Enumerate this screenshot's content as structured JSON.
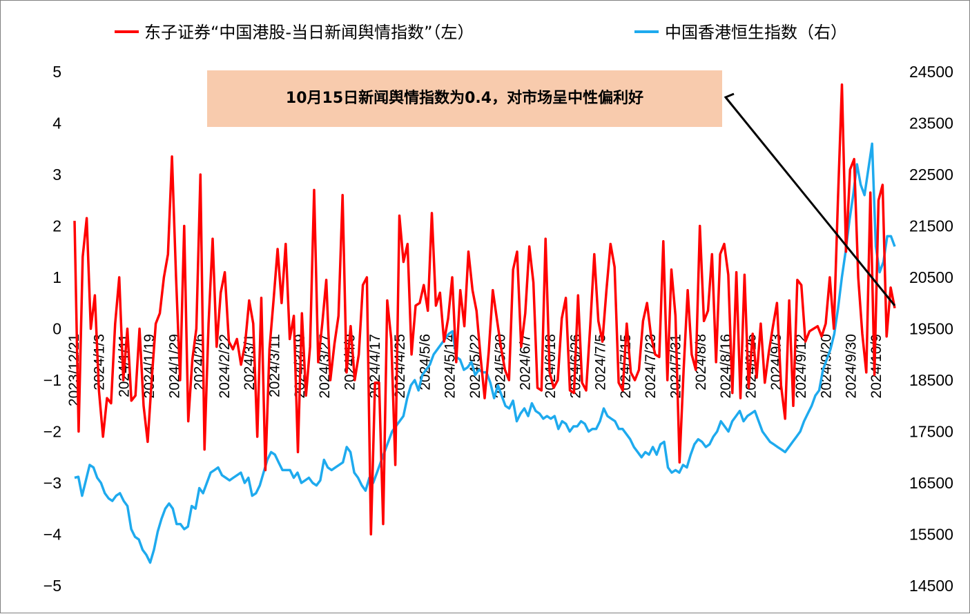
{
  "chart_data": {
    "type": "line",
    "dual_axis": true,
    "title": "",
    "legend": {
      "position": "top",
      "items": [
        {
          "label": "东子证券“中国港股-当日新闻舆情指数”（左）",
          "color": "#ff0000"
        },
        {
          "label": "中国香港恒生指数（右）",
          "color": "#1eaaee"
        }
      ]
    },
    "annotation": {
      "text": "10月15日新闻舆情指数为0.4，对市场呈中性偏利好",
      "box_color": "#f8cbad",
      "arrow_color": "#000000"
    },
    "y_left": {
      "min": -5,
      "max": 5,
      "ticks": [
        "5",
        "4",
        "3",
        "2",
        "1",
        "0",
        "−1",
        "−2",
        "−3",
        "−4",
        "−5"
      ]
    },
    "y_right": {
      "min": 14500,
      "max": 24500,
      "ticks": [
        "24500",
        "23500",
        "22500",
        "21500",
        "20500",
        "19500",
        "18500",
        "17500",
        "16500",
        "15500",
        "14500"
      ]
    },
    "x_tick_labels": [
      "2023/12/21",
      "2024/1/3",
      "2024/1/11",
      "2024/1/19",
      "2024/1/29",
      "2024/2/6",
      "2024/2/22",
      "2024/3/1",
      "2024/3/11",
      "2024/3/19",
      "2024/3/27",
      "2024/4/9",
      "2024/4/17",
      "2024/4/25",
      "2024/5/6",
      "2024/5/14",
      "2024/5/22",
      "2024/5/30",
      "2024/6/7",
      "2024/6/18",
      "2024/6/26",
      "2024/7/5",
      "2024/7/15",
      "2024/7/23",
      "2024/7/31",
      "2024/8/8",
      "2024/8/16",
      "2024/8/26",
      "2024/9/3",
      "2024/9/12",
      "2024/9/20",
      "2024/9/30",
      "2024/10/9"
    ],
    "series": [
      {
        "name": "东子证券“中国港股-当日新闻舆情指数”（左）",
        "axis": "left",
        "color": "#ff0000",
        "values": [
          2.1,
          -2.0,
          1.4,
          2.15,
          0.0,
          0.65,
          -1.2,
          -2.1,
          -1.35,
          -1.45,
          0.1,
          1.0,
          -1.0,
          0.0,
          -1.4,
          -1.3,
          0.0,
          -1.5,
          -2.2,
          -1.0,
          0.1,
          0.3,
          1.0,
          1.45,
          3.35,
          1.0,
          -1.0,
          2.0,
          -1.8,
          -0.6,
          0.0,
          3.0,
          -2.35,
          0.1,
          1.75,
          -0.35,
          0.7,
          1.1,
          -0.25,
          -0.4,
          -0.2,
          -0.7,
          -0.3,
          0.55,
          0.1,
          -2.1,
          0.6,
          -2.75,
          -0.4,
          0.55,
          1.55,
          0.5,
          1.65,
          -0.2,
          0.25,
          -2.4,
          0.3,
          -1.3,
          -0.35,
          2.7,
          -0.65,
          0.1,
          0.95,
          -1.0,
          -0.3,
          0.25,
          2.6,
          -0.85,
          0.05,
          -1.0,
          -0.5,
          0.85,
          1.0,
          -4.0,
          -1.05,
          -1.05,
          -3.8,
          0.55,
          -0.2,
          -2.65,
          2.2,
          1.3,
          1.65,
          -0.5,
          0.45,
          0.5,
          0.85,
          0.35,
          2.25,
          0.45,
          0.7,
          -0.25,
          0.2,
          1.0,
          -0.65,
          0.75,
          0.05,
          1.5,
          0.75,
          0.35,
          -0.55,
          -1.35,
          -0.45,
          0.75,
          0.2,
          -0.35,
          -0.8,
          -1.0,
          1.15,
          1.5,
          -0.35,
          0.3,
          1.6,
          0.9,
          -1.15,
          -1.2,
          1.75,
          -0.85,
          -1.15,
          -1.0,
          0.2,
          0.6,
          -1.2,
          -1.25,
          0.65,
          -1.05,
          -1.2,
          0.05,
          1.45,
          0.15,
          -0.25,
          0.75,
          1.65,
          1.2,
          -1.05,
          -1.2,
          0.1,
          -0.85,
          -1.0,
          -0.8,
          0.15,
          0.5,
          -0.15,
          -0.5,
          -0.55,
          1.7,
          -1.0,
          1.15,
          0.25,
          -2.6,
          -0.8,
          0.75,
          -0.5,
          -0.8,
          2.0,
          0.15,
          0.35,
          1.45,
          -0.65,
          1.45,
          1.65,
          1.05,
          -1.25,
          1.1,
          -1.35,
          1.05,
          -1.15,
          -0.1,
          -0.95,
          0.1,
          -1.05,
          -0.45,
          0.05,
          0.5,
          -1.1,
          -1.75,
          0.55,
          -1.5,
          0.95,
          0.85,
          -0.25,
          -0.05,
          0.0,
          0.05,
          -0.15,
          0.1,
          1.0,
          0.0,
          2.5,
          4.75,
          1.5,
          3.1,
          3.3,
          1.0,
          -0.1,
          -0.85,
          2.65,
          -0.9,
          2.5,
          2.8,
          -0.15,
          0.8,
          0.4
        ]
      },
      {
        "name": "中国香港恒生指数（右）",
        "axis": "right",
        "color": "#1eaaee",
        "values": [
          16600,
          16620,
          16250,
          16550,
          16850,
          16800,
          16600,
          16500,
          16300,
          16200,
          16150,
          16250,
          16300,
          16150,
          16050,
          15600,
          15450,
          15400,
          15200,
          15100,
          14950,
          15200,
          15550,
          15800,
          16000,
          16100,
          16000,
          15700,
          15700,
          15600,
          15650,
          16050,
          16000,
          16400,
          16300,
          16500,
          16700,
          16750,
          16800,
          16650,
          16600,
          16550,
          16600,
          16650,
          16700,
          16500,
          16600,
          16250,
          16300,
          16450,
          16700,
          16950,
          17100,
          17050,
          16900,
          16750,
          16750,
          16750,
          16600,
          16700,
          16500,
          16550,
          16600,
          16500,
          16450,
          16550,
          16950,
          16800,
          16750,
          16800,
          16850,
          16900,
          17200,
          17100,
          16700,
          16600,
          16450,
          16350,
          16600,
          16500,
          16700,
          16900,
          17100,
          17300,
          17500,
          17600,
          17700,
          17800,
          18150,
          18400,
          18500,
          18300,
          18600,
          18700,
          18800,
          19000,
          19100,
          19200,
          19300,
          19400,
          19450,
          18950,
          18900,
          18700,
          18750,
          18850,
          18600,
          18700,
          18650,
          18650,
          18450,
          18150,
          18400,
          18200,
          18000,
          17950,
          18100,
          17700,
          17850,
          17950,
          17800,
          18050,
          17900,
          17850,
          17750,
          17800,
          17750,
          17800,
          17550,
          17700,
          17650,
          17500,
          17600,
          17600,
          17700,
          17650,
          17500,
          17550,
          17550,
          17700,
          17950,
          17800,
          17750,
          17700,
          17550,
          17550,
          17450,
          17350,
          17200,
          17100,
          17000,
          17100,
          17050,
          17200,
          17050,
          17250,
          17300,
          16800,
          16700,
          16750,
          16700,
          16850,
          16800,
          17050,
          17250,
          17350,
          17300,
          17200,
          17250,
          17400,
          17500,
          17700,
          17600,
          17500,
          17700,
          17800,
          17900,
          17700,
          17800,
          17850,
          17900,
          17700,
          17500,
          17400,
          17300,
          17250,
          17200,
          17150,
          17100,
          17200,
          17300,
          17400,
          17500,
          17700,
          17850,
          18000,
          18200,
          18300,
          18700,
          18900,
          19100,
          19400,
          19900,
          20500,
          21000,
          21600,
          22100,
          22700,
          22300,
          22100,
          22600,
          23100,
          21100,
          20600,
          20800,
          21300,
          21300,
          21100
        ]
      }
    ]
  }
}
